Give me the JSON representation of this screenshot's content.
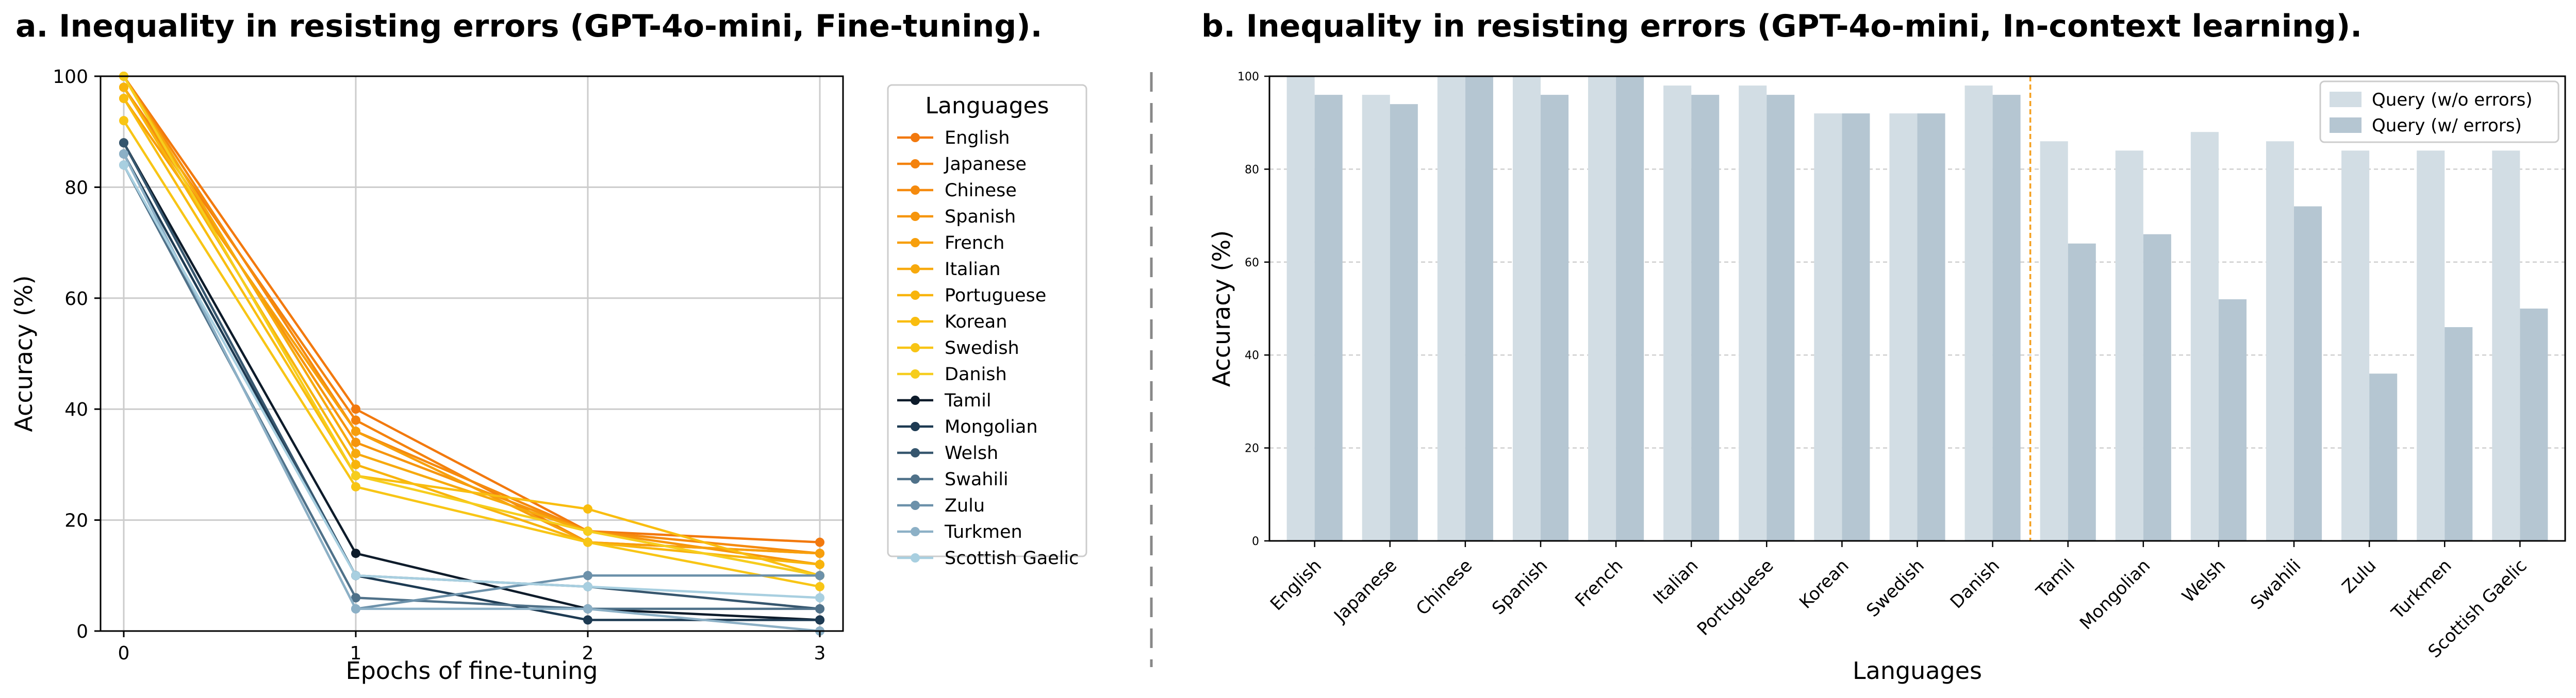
{
  "titles": {
    "a": "a. Inequality in resisting errors (GPT-4o-mini, Fine-tuning).",
    "b": "b. Inequality in resisting errors (GPT-4o-mini, In-context learning)."
  },
  "chart_data": [
    {
      "type": "line",
      "title": "a. Inequality in resisting errors (GPT-4o-mini, Fine-tuning).",
      "xlabel": "Epochs of fine-tuning",
      "ylabel": "Accuracy (%)",
      "x": [
        0,
        1,
        2,
        3
      ],
      "xlim": [
        -0.1,
        3.1
      ],
      "ylim": [
        0,
        100
      ],
      "yticks": [
        0,
        20,
        40,
        60,
        80,
        100
      ],
      "grid": true,
      "legend": {
        "title": "Languages",
        "placement": "right, outside"
      },
      "series": [
        {
          "name": "English",
          "color": "#f2790e",
          "values": [
            100,
            40,
            18,
            16
          ]
        },
        {
          "name": "Japanese",
          "color": "#f4820d",
          "values": [
            98,
            38,
            16,
            14
          ]
        },
        {
          "name": "Chinese",
          "color": "#f58a0d",
          "values": [
            100,
            36,
            18,
            14
          ]
        },
        {
          "name": "Spanish",
          "color": "#f6950c",
          "values": [
            98,
            34,
            18,
            12
          ]
        },
        {
          "name": "French",
          "color": "#f79f0c",
          "values": [
            96,
            36,
            16,
            14
          ]
        },
        {
          "name": "Italian",
          "color": "#f7a90c",
          "values": [
            100,
            32,
            18,
            10
          ]
        },
        {
          "name": "Portuguese",
          "color": "#f8b40c",
          "values": [
            98,
            30,
            16,
            12
          ]
        },
        {
          "name": "Korean",
          "color": "#f9bd0f",
          "values": [
            96,
            28,
            22,
            10
          ]
        },
        {
          "name": "Swedish",
          "color": "#f8c515",
          "values": [
            92,
            26,
            16,
            8
          ]
        },
        {
          "name": "Danish",
          "color": "#f6cd1d",
          "values": [
            100,
            28,
            18,
            10
          ]
        },
        {
          "name": "Tamil",
          "color": "#0d1b2a",
          "values": [
            88,
            14,
            4,
            2
          ]
        },
        {
          "name": "Mongolian",
          "color": "#1d3a52",
          "values": [
            86,
            10,
            2,
            2
          ]
        },
        {
          "name": "Welsh",
          "color": "#36566e",
          "values": [
            88,
            10,
            8,
            4
          ]
        },
        {
          "name": "Swahili",
          "color": "#4f7189",
          "values": [
            84,
            6,
            4,
            4
          ]
        },
        {
          "name": "Zulu",
          "color": "#6c91aa",
          "values": [
            86,
            4,
            10,
            10
          ]
        },
        {
          "name": "Turkmen",
          "color": "#8cb0c6",
          "values": [
            86,
            4,
            4,
            0
          ]
        },
        {
          "name": "Scottish Gaelic",
          "color": "#a8cfe0",
          "values": [
            84,
            10,
            8,
            6
          ]
        }
      ]
    },
    {
      "type": "bar",
      "title": "b. Inequality in resisting errors (GPT-4o-mini, In-context learning).",
      "xlabel": "Languages",
      "ylabel": "Accuracy (%)",
      "ylim": [
        0,
        100
      ],
      "yticks": [
        0,
        20,
        40,
        60,
        80,
        100
      ],
      "grid": "y dashed",
      "legend": {
        "placement": "top-right"
      },
      "divider_after": "Danish",
      "divider_color": "#f4a020",
      "categories": [
        "English",
        "Japanese",
        "Chinese",
        "Spanish",
        "French",
        "Italian",
        "Portuguese",
        "Korean",
        "Swedish",
        "Danish",
        "Tamil",
        "Mongolian",
        "Welsh",
        "Swahili",
        "Zulu",
        "Turkmen",
        "Scottish Gaelic"
      ],
      "series": [
        {
          "name": "Query (w/o errors)",
          "color": "#d2dde4",
          "values": [
            100,
            96,
            100,
            100,
            100,
            98,
            98,
            92,
            92,
            98,
            86,
            84,
            88,
            86,
            84,
            84,
            84
          ]
        },
        {
          "name": "Query (w/ errors)",
          "color": "#b5c6d2",
          "values": [
            96,
            94,
            100,
            96,
            100,
            96,
            96,
            92,
            92,
            96,
            64,
            66,
            52,
            72,
            36,
            46,
            50
          ]
        }
      ]
    }
  ]
}
